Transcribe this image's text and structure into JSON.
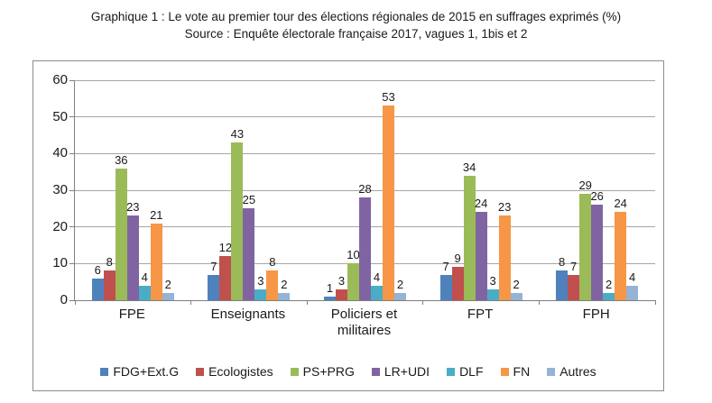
{
  "chart_data": {
    "type": "bar",
    "title": "Graphique 1 : Le vote au premier tour des élections régionales de 2015 en suffrages exprimés (%)",
    "subtitle": "Source : Enquête électorale française 2017, vagues 1, 1bis et 2",
    "categories": [
      "FPE",
      "Enseignants",
      "Policiers et militaires",
      "FPT",
      "FPH"
    ],
    "series": [
      {
        "name": "FDG+Ext.G",
        "color": "#4F81BD",
        "values": [
          6,
          7,
          1,
          7,
          8
        ]
      },
      {
        "name": "Ecologistes",
        "color": "#C0504D",
        "values": [
          8,
          12,
          3,
          9,
          7
        ]
      },
      {
        "name": "PS+PRG",
        "color": "#9BBB59",
        "values": [
          36,
          43,
          10,
          34,
          29
        ]
      },
      {
        "name": "LR+UDI",
        "color": "#8064A2",
        "values": [
          23,
          25,
          28,
          24,
          26
        ]
      },
      {
        "name": "DLF",
        "color": "#4BACC6",
        "values": [
          4,
          3,
          4,
          3,
          2
        ]
      },
      {
        "name": "FN",
        "color": "#F79646",
        "values": [
          21,
          8,
          53,
          23,
          24
        ]
      },
      {
        "name": "Autres",
        "color": "#95B3D7",
        "values": [
          2,
          2,
          2,
          2,
          4
        ]
      }
    ],
    "xlabel": "",
    "ylabel": "",
    "ylim": [
      0,
      60
    ],
    "ytick_step": 10,
    "grid": true,
    "legend_position": "bottom",
    "colors": {
      "gridline": "#a6a6a6",
      "axis": "#808080",
      "frame_border": "#8c8c8c",
      "text": "#1a1a1a"
    }
  }
}
